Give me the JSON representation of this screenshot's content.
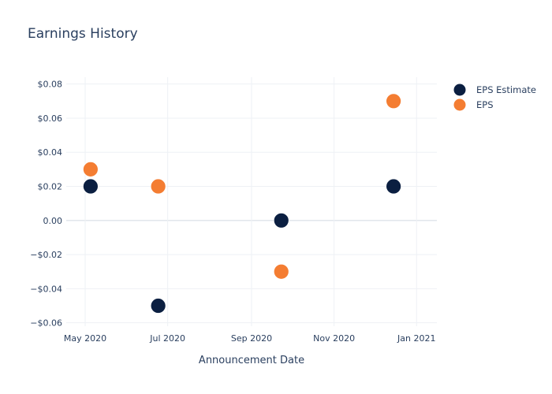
{
  "chart_data": {
    "type": "scatter",
    "title": "Earnings History",
    "xlabel": "Announcement Date",
    "ylabel": "",
    "x_axis_type": "date",
    "xlim": [
      "2020-04-17",
      "2021-01-16"
    ],
    "ylim": [
      -0.062,
      0.084
    ],
    "x_ticks": [
      {
        "value": "2020-05-01",
        "label": "May 2020"
      },
      {
        "value": "2020-07-01",
        "label": "Jul 2020"
      },
      {
        "value": "2020-09-01",
        "label": "Sep 2020"
      },
      {
        "value": "2020-11-01",
        "label": "Nov 2020"
      },
      {
        "value": "2021-01-01",
        "label": "Jan 2021"
      }
    ],
    "y_ticks": [
      {
        "value": 0.08,
        "label": "$0.08"
      },
      {
        "value": 0.06,
        "label": "$0.06"
      },
      {
        "value": 0.04,
        "label": "$0.04"
      },
      {
        "value": 0.02,
        "label": "$0.02"
      },
      {
        "value": 0.0,
        "label": "0.00"
      },
      {
        "value": -0.02,
        "label": "−$0.02"
      },
      {
        "value": -0.04,
        "label": "−$0.04"
      },
      {
        "value": -0.06,
        "label": "−$0.06"
      }
    ],
    "grid": true,
    "legend_position": "top-right",
    "series": [
      {
        "name": "EPS Estimate",
        "color": "#0b1f41",
        "points": [
          {
            "x": "2020-05-05",
            "y": 0.02
          },
          {
            "x": "2020-06-24",
            "y": -0.05
          },
          {
            "x": "2020-09-23",
            "y": 0.0
          },
          {
            "x": "2020-12-15",
            "y": 0.02
          }
        ]
      },
      {
        "name": "EPS",
        "color": "#f47d32",
        "points": [
          {
            "x": "2020-05-05",
            "y": 0.03
          },
          {
            "x": "2020-06-24",
            "y": 0.02
          },
          {
            "x": "2020-09-23",
            "y": -0.03
          },
          {
            "x": "2020-12-15",
            "y": 0.07
          }
        ]
      }
    ]
  }
}
